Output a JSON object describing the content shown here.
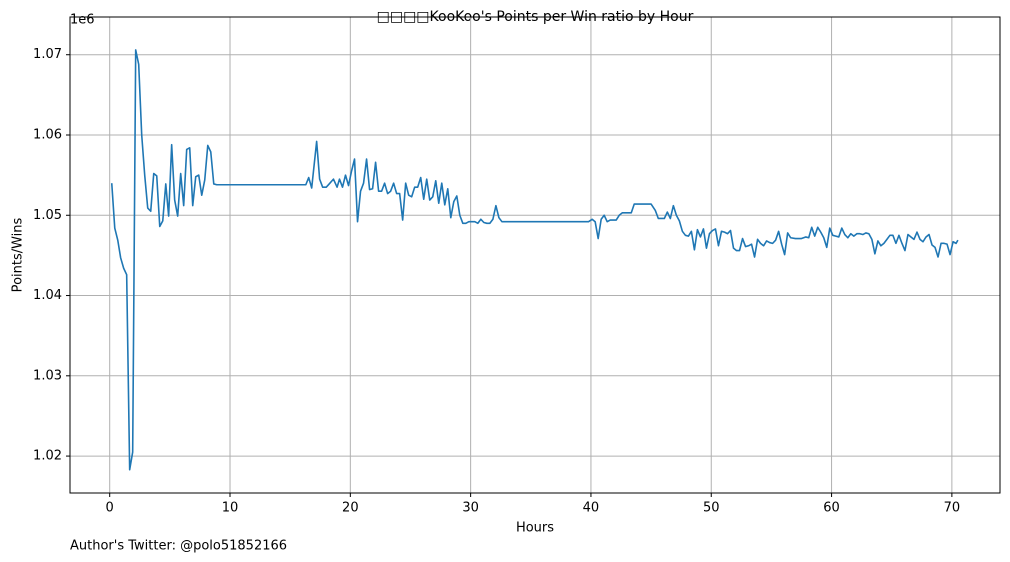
{
  "chart_data": {
    "type": "line",
    "title": "□□□□KooKoo's Points per Win ratio by Hour",
    "x_label": "Hours",
    "y_label": "Points/Wins",
    "y_offset_text": "1e6",
    "footer": "Author's Twitter: @polo51852166",
    "xlim": [
      -3.3,
      74
    ],
    "ylim": [
      1.0154,
      1.0747
    ],
    "xticks": [
      0,
      10,
      20,
      30,
      40,
      50,
      60,
      70
    ],
    "yticks": [
      1.02,
      1.03,
      1.04,
      1.05,
      1.06,
      1.07
    ],
    "grid": true,
    "series": [
      {
        "color": "#1f77b4",
        "x": [
          0.17,
          0.42,
          0.67,
          0.91,
          1.16,
          1.41,
          1.66,
          1.91,
          2.16,
          2.41,
          2.66,
          2.91,
          3.16,
          3.41,
          3.66,
          3.91,
          4.16,
          4.41,
          4.66,
          4.9,
          5.15,
          5.4,
          5.65,
          5.9,
          6.15,
          6.4,
          6.65,
          6.9,
          7.15,
          7.4,
          7.65,
          7.9,
          8.15,
          8.4,
          8.65,
          8.9,
          16.3,
          16.54,
          16.79,
          17.2,
          17.45,
          17.7,
          18.0,
          18.3,
          18.6,
          18.9,
          19.1,
          19.35,
          19.6,
          19.85,
          20.1,
          20.35,
          20.6,
          20.85,
          21.1,
          21.35,
          21.6,
          21.85,
          22.1,
          22.35,
          22.6,
          22.85,
          23.1,
          23.35,
          23.6,
          23.85,
          24.1,
          24.35,
          24.6,
          24.85,
          25.1,
          25.35,
          25.6,
          25.85,
          26.1,
          26.35,
          26.6,
          26.85,
          27.1,
          27.35,
          27.6,
          27.85,
          28.1,
          28.35,
          28.6,
          28.85,
          29.1,
          29.35,
          29.6,
          29.85,
          30.1,
          30.35,
          30.6,
          30.85,
          31.1,
          31.35,
          31.6,
          31.85,
          32.1,
          32.35,
          32.6,
          33,
          39.8,
          40.1,
          40.35,
          40.6,
          40.85,
          41.1,
          41.35,
          41.6,
          41.85,
          42.1,
          42.35,
          42.6,
          42.85,
          43.1,
          43.35,
          43.6,
          43.85,
          45.0,
          45.35,
          45.6,
          45.85,
          46.1,
          46.35,
          46.6,
          46.85,
          47.1,
          47.35,
          47.6,
          47.85,
          48.1,
          48.35,
          48.6,
          48.85,
          49.1,
          49.35,
          49.6,
          49.85,
          50.1,
          50.35,
          50.6,
          50.85,
          51.1,
          51.35,
          51.6,
          51.85,
          52.1,
          52.35,
          52.6,
          52.85,
          53.1,
          53.35,
          53.6,
          53.85,
          54.1,
          54.35,
          54.6,
          54.85,
          55.1,
          55.35,
          55.6,
          55.85,
          56.1,
          56.35,
          56.6,
          57,
          57.5,
          57.85,
          58.1,
          58.35,
          58.6,
          58.85,
          59.1,
          59.35,
          59.6,
          59.85,
          60.1,
          60.35,
          60.6,
          60.85,
          61.1,
          61.35,
          61.6,
          61.85,
          62.1,
          62.35,
          62.6,
          62.85,
          63.1,
          63.35,
          63.6,
          63.85,
          64.1,
          64.35,
          64.6,
          64.85,
          65.1,
          65.35,
          65.6,
          65.85,
          66.1,
          66.35,
          66.6,
          66.85,
          67.1,
          67.35,
          67.6,
          67.85,
          68.1,
          68.35,
          68.6,
          68.85,
          69.1,
          69.35,
          69.6,
          69.85,
          70.1,
          70.35,
          70.5
        ],
        "values": [
          1.054,
          1.0484,
          1.0469,
          1.0447,
          1.0434,
          1.0426,
          1.0183,
          1.0205,
          1.0706,
          1.0688,
          1.06,
          1.055,
          1.0509,
          1.0505,
          1.0552,
          1.0549,
          1.0486,
          1.0493,
          1.0539,
          1.0499,
          1.0588,
          1.0519,
          1.0499,
          1.0552,
          1.0512,
          1.0582,
          1.0584,
          1.0512,
          1.0548,
          1.055,
          1.0525,
          1.0544,
          1.0587,
          1.0579,
          1.0539,
          1.0538,
          1.0538,
          1.0547,
          1.0534,
          1.0592,
          1.0545,
          1.0535,
          1.0535,
          1.054,
          1.0545,
          1.0535,
          1.0545,
          1.0535,
          1.055,
          1.0537,
          1.0555,
          1.057,
          1.0492,
          1.053,
          1.054,
          1.057,
          1.0532,
          1.0533,
          1.0566,
          1.053,
          1.053,
          1.054,
          1.0527,
          1.053,
          1.054,
          1.0527,
          1.0527,
          1.0494,
          1.054,
          1.0525,
          1.0523,
          1.0535,
          1.0535,
          1.0547,
          1.052,
          1.0545,
          1.0519,
          1.0523,
          1.0543,
          1.0515,
          1.054,
          1.0513,
          1.0533,
          1.0497,
          1.0517,
          1.0524,
          1.05,
          1.049,
          1.049,
          1.0492,
          1.0492,
          1.0492,
          1.049,
          1.0495,
          1.0491,
          1.049,
          1.049,
          1.0495,
          1.0512,
          1.0497,
          1.0492,
          1.0492,
          1.0492,
          1.0495,
          1.0492,
          1.0471,
          1.0495,
          1.05,
          1.0492,
          1.0494,
          1.0494,
          1.0494,
          1.05,
          1.0503,
          1.0503,
          1.0503,
          1.0503,
          1.0514,
          1.0514,
          1.0514,
          1.0506,
          1.0496,
          1.0496,
          1.0496,
          1.0504,
          1.0496,
          1.0512,
          1.05,
          1.0493,
          1.048,
          1.0475,
          1.0474,
          1.048,
          1.0457,
          1.0482,
          1.0473,
          1.0483,
          1.0459,
          1.0477,
          1.0481,
          1.0483,
          1.0462,
          1.048,
          1.0479,
          1.0477,
          1.0481,
          1.0459,
          1.0456,
          1.0456,
          1.0471,
          1.0461,
          1.0462,
          1.0464,
          1.0448,
          1.047,
          1.0465,
          1.0462,
          1.0468,
          1.0466,
          1.0465,
          1.0469,
          1.048,
          1.0464,
          1.0451,
          1.0478,
          1.0472,
          1.0471,
          1.0471,
          1.0473,
          1.0472,
          1.0485,
          1.0474,
          1.0485,
          1.0479,
          1.0472,
          1.046,
          1.0484,
          1.0475,
          1.0474,
          1.0473,
          1.0484,
          1.0476,
          1.0472,
          1.0477,
          1.0474,
          1.0477,
          1.0477,
          1.0476,
          1.0478,
          1.0477,
          1.047,
          1.0452,
          1.0468,
          1.0462,
          1.0465,
          1.047,
          1.0475,
          1.0475,
          1.0465,
          1.0475,
          1.0465,
          1.0456,
          1.0476,
          1.0473,
          1.047,
          1.0479,
          1.047,
          1.0467,
          1.0473,
          1.0476,
          1.0463,
          1.046,
          1.0448,
          1.0465,
          1.0465,
          1.0464,
          1.0451,
          1.0467,
          1.0465,
          1.0469
        ]
      }
    ]
  }
}
